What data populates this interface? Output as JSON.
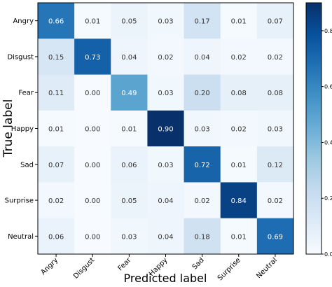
{
  "chart_data": {
    "type": "heatmap",
    "title": "",
    "xlabel": "Predicted label",
    "ylabel": "True label",
    "x_categories": [
      "Angry",
      "Disgust",
      "Fear",
      "Happy",
      "Sad",
      "Surprise",
      "Neutral"
    ],
    "y_categories": [
      "Angry",
      "Disgust",
      "Fear",
      "Happy",
      "Sad",
      "Surprise",
      "Neutral"
    ],
    "values": [
      [
        0.66,
        0.01,
        0.05,
        0.03,
        0.17,
        0.01,
        0.07
      ],
      [
        0.15,
        0.73,
        0.04,
        0.02,
        0.04,
        0.02,
        0.02
      ],
      [
        0.11,
        0.0,
        0.49,
        0.03,
        0.2,
        0.08,
        0.08
      ],
      [
        0.01,
        0.0,
        0.01,
        0.9,
        0.03,
        0.02,
        0.03
      ],
      [
        0.07,
        0.0,
        0.06,
        0.03,
        0.72,
        0.01,
        0.12
      ],
      [
        0.02,
        0.0,
        0.05,
        0.04,
        0.02,
        0.84,
        0.02
      ],
      [
        0.06,
        0.0,
        0.03,
        0.04,
        0.18,
        0.01,
        0.69
      ]
    ],
    "colormap": "Blues",
    "colorbar": {
      "range": [
        0.0,
        0.9
      ],
      "ticks": [
        "0.0",
        "0.2",
        "0.4",
        "0.6",
        "0.8"
      ],
      "tick_values": [
        0.0,
        0.2,
        0.4,
        0.6,
        0.8
      ]
    },
    "colors": {
      "low": "#f7fbff",
      "high": "#08306b",
      "text_dark": "#333333",
      "text_light": "#ffffff"
    },
    "grid": false
  }
}
